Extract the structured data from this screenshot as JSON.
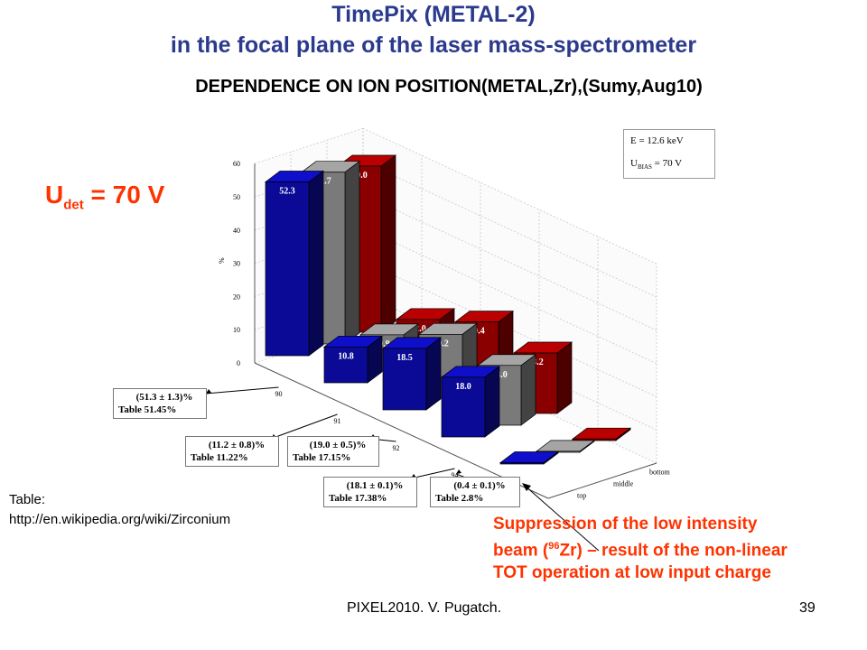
{
  "slide": {
    "title_line1": "TimePix (METAL-2)",
    "title_line2": "in the focal plane of the laser mass-spectrometer",
    "udet_main": "U",
    "udet_sub": "det",
    "udet_value": "= 70 V",
    "reference_line1": "Table:",
    "reference_line2": "http://en.wikipedia.org/wiki/Zirconium",
    "note_line1": "Suppression of the low intensity",
    "note_line2a": "beam (",
    "note_sup": "96",
    "note_line2b": "Zr) – result of the non-linear",
    "note_line3": "TOT operation at low input charge",
    "footer": "PIXEL2010. V. Pugatch.",
    "page_number": "39"
  },
  "legend": {
    "energy": "E = 12.6 keV",
    "ubias_main": "U",
    "ubias_sub": "BIAS",
    "ubias_value": "= 70 V"
  },
  "annotations": [
    {
      "measured": "(51.3 ± 1.3)%",
      "table": "Table  51.45%"
    },
    {
      "measured": "(11.2 ± 0.8)%",
      "table": "Table  11.22%"
    },
    {
      "measured": "(19.0 ± 0.5)%",
      "table": "Table  17.15%"
    },
    {
      "measured": "(18.1 ± 0.1)%",
      "table": "Table  17.38%"
    },
    {
      "measured": "(0.4 ± 0.1)%",
      "table": "Table  2.8%"
    }
  ],
  "chart_data": {
    "type": "bar",
    "subtype": "3d-bar",
    "title": "DEPENDENCE ON ION POSITION(METAL,Zr),(Sumy,Aug10)",
    "ylabel": "%",
    "zlim": [
      0,
      60
    ],
    "zticks": [
      "0",
      "10",
      "20",
      "30",
      "40",
      "50",
      "60"
    ],
    "categories": [
      "90",
      "91",
      "92",
      "94",
      "96"
    ],
    "series": [
      {
        "name": "top",
        "color": "#0a0a96",
        "values": [
          52.3,
          10.8,
          18.5,
          18.0,
          0.4
        ]
      },
      {
        "name": "middle",
        "color": "#7a7a7a",
        "values": [
          51.7,
          10.9,
          19.2,
          18.0,
          0.3
        ]
      },
      {
        "name": "bottom",
        "color": "#8a0000",
        "values": [
          50.0,
          12.0,
          19.4,
          18.2,
          0.5
        ]
      }
    ],
    "grid": true
  }
}
